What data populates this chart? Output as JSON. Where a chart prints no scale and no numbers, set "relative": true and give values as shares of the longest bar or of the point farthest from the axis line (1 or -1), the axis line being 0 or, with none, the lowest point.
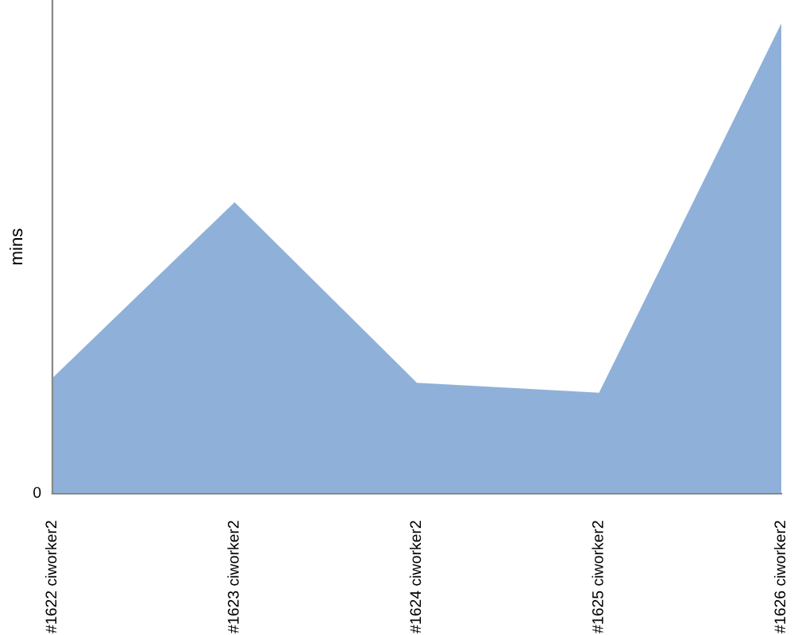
{
  "chart_data": {
    "type": "area",
    "relative": true,
    "ylabel": "mins",
    "annotations": [
      "0"
    ],
    "categories": [
      "#1622 ciworker2",
      "#1623 ciworker2",
      "#1624 ciworker2",
      "#1625 ciworker2",
      "#1626 ciworker2"
    ],
    "series": [
      {
        "color": "#8fb1d9",
        "values": [
          0.246,
          0.62,
          0.236,
          0.215,
          1
        ]
      }
    ]
  }
}
